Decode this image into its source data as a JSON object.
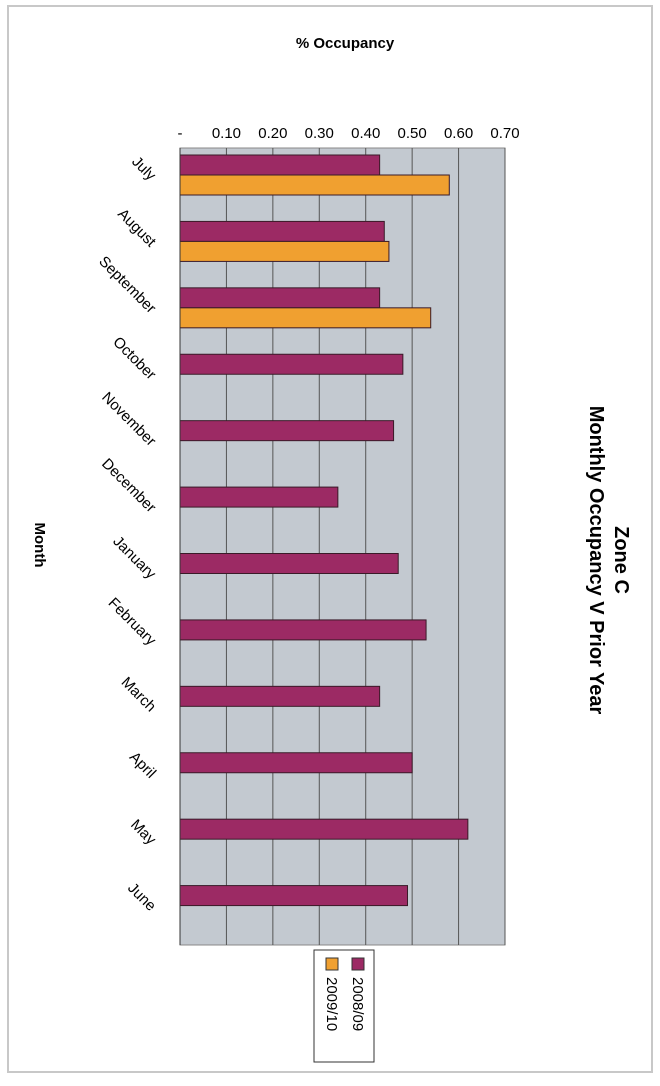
{
  "chart_data": {
    "type": "bar",
    "orientation": "horizontal",
    "title": "Zone C",
    "subtitle": "Monthly Occupancy V Prior Year",
    "xlabel": "% Occupancy",
    "ylabel": "Month",
    "xlim": [
      0,
      0.7
    ],
    "x_ticks": [
      "-",
      "0.10",
      "0.20",
      "0.30",
      "0.40",
      "0.50",
      "0.60",
      "0.70"
    ],
    "categories": [
      "July",
      "August",
      "September",
      "October",
      "November",
      "December",
      "January",
      "February",
      "March",
      "April",
      "May",
      "June"
    ],
    "series": [
      {
        "name": "2008/09",
        "color": "#9c2a64",
        "values": [
          0.43,
          0.44,
          0.43,
          0.48,
          0.46,
          0.34,
          0.47,
          0.53,
          0.43,
          0.5,
          0.62,
          0.49
        ]
      },
      {
        "name": "2009/10",
        "color": "#f0a030",
        "values": [
          0.58,
          0.45,
          0.54,
          null,
          null,
          null,
          null,
          null,
          null,
          null,
          null,
          null
        ]
      }
    ],
    "grid": true,
    "legend_position": "bottom"
  }
}
